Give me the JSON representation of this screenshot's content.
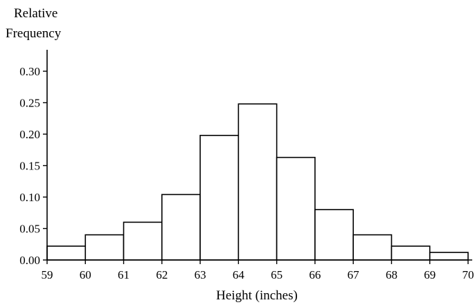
{
  "chart_data": {
    "type": "bar",
    "ylabel": [
      "Relative",
      "Frequency"
    ],
    "xlabel": "Height (inches)",
    "bin_edges": [
      59,
      60,
      61,
      62,
      63,
      64,
      65,
      66,
      67,
      68,
      69,
      70
    ],
    "values": [
      0.022,
      0.04,
      0.06,
      0.104,
      0.198,
      0.248,
      0.163,
      0.08,
      0.04,
      0.022,
      0.012
    ],
    "xlim": [
      59,
      70
    ],
    "ylim": [
      0,
      0.3
    ],
    "y_ticks": [
      "0.00",
      "0.05",
      "0.10",
      "0.15",
      "0.20",
      "0.25",
      "0.30"
    ],
    "x_ticks": [
      "59",
      "60",
      "61",
      "62",
      "63",
      "64",
      "65",
      "66",
      "67",
      "68",
      "69",
      "70"
    ],
    "grid": false
  }
}
